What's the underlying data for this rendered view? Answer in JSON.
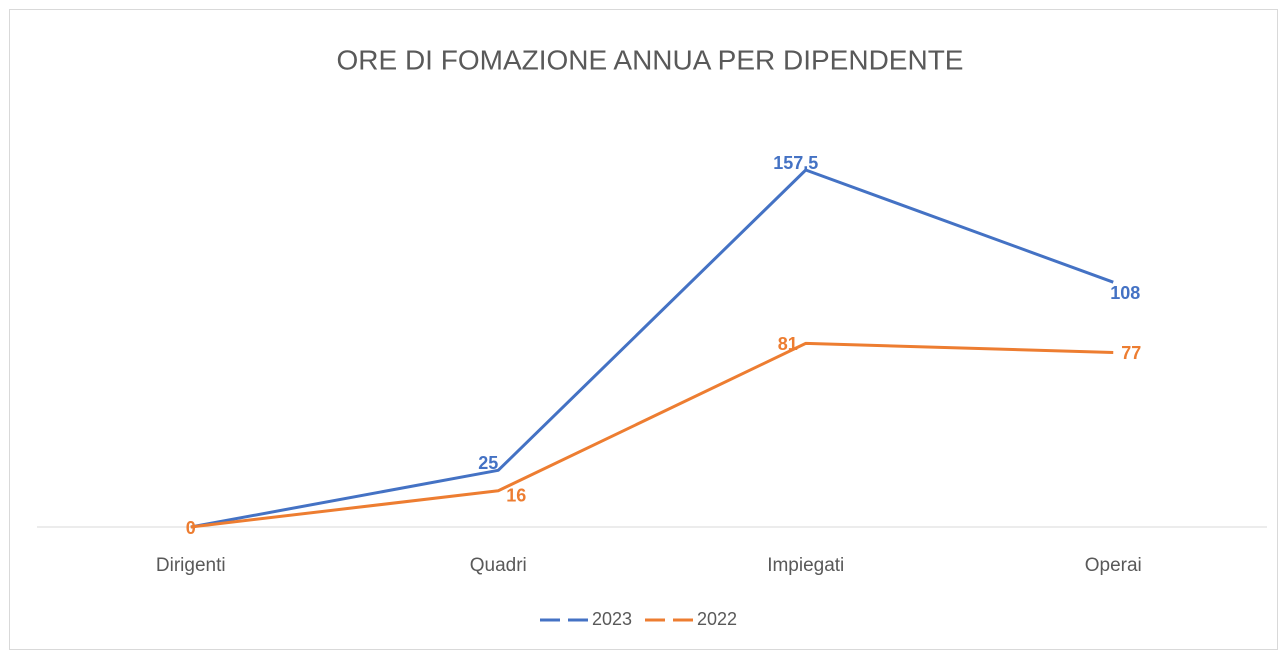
{
  "chart_data": {
    "type": "line",
    "title": "ORE DI FOMAZIONE ANNUA PER DIPENDENTE",
    "categories": [
      "Dirigenti",
      "Quadri",
      "Impiegati",
      "Operai"
    ],
    "series": [
      {
        "name": "2023",
        "color": "#4472c4",
        "values": [
          0,
          25,
          157.5,
          108
        ],
        "value_labels": [
          null,
          "25",
          "157,5",
          "108"
        ]
      },
      {
        "name": "2022",
        "color": "#ed7d31",
        "values": [
          0,
          16,
          81,
          77
        ]
      }
    ],
    "ylim": [
      0,
      180
    ],
    "legend": "bottom"
  }
}
